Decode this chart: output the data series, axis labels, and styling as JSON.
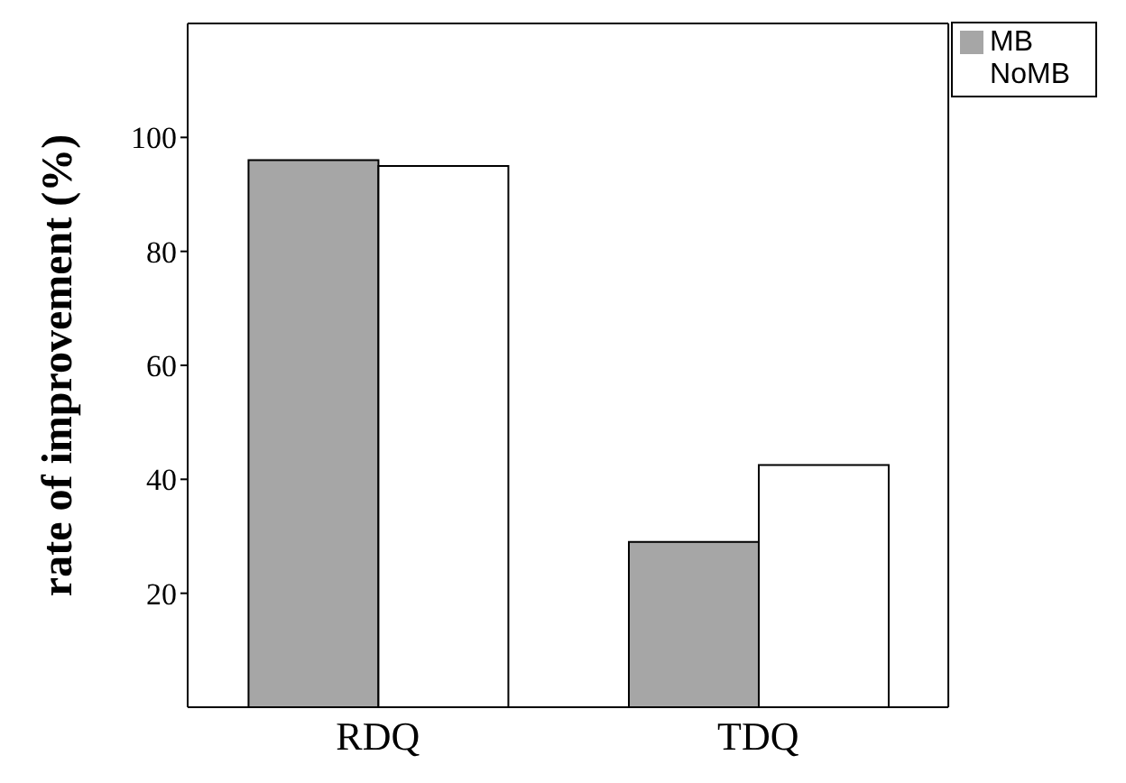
{
  "chart_data": {
    "type": "bar",
    "ylabel": "rate of improvement (%)",
    "categories": [
      "RDQ",
      "TDQ"
    ],
    "series": [
      {
        "name": "MB",
        "color": "#a6a6a6",
        "values": [
          96,
          29
        ]
      },
      {
        "name": "NoMB",
        "color": "#ffffff",
        "values": [
          95,
          42.5
        ]
      }
    ],
    "ylim": [
      0,
      120
    ],
    "yticks": [
      20,
      40,
      60,
      80,
      100
    ],
    "grid": false,
    "legend": "top right"
  }
}
